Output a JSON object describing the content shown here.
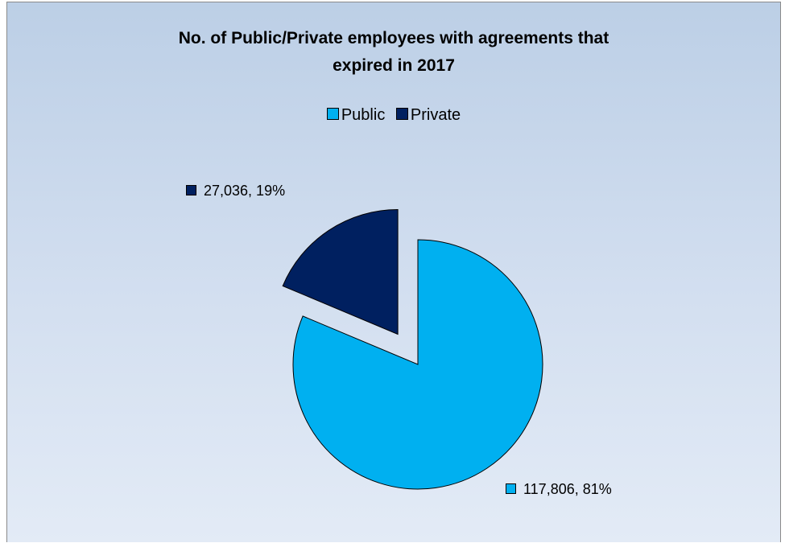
{
  "chart_data": {
    "type": "pie",
    "title": "No. of Public/Private employees with agreements that expired in 2017",
    "title_lines": [
      "No. of Public/Private employees with agreements that",
      "expired in 2017"
    ],
    "legend_position": "top",
    "exploded": true,
    "slices": [
      {
        "label": "Public",
        "value": 117806,
        "percent": 81,
        "value_label": "117,806",
        "percent_label": "81%",
        "color": "#00b0f0"
      },
      {
        "label": "Private",
        "value": 27036,
        "percent": 19,
        "value_label": "27,036",
        "percent_label": "19%",
        "color": "#002060"
      }
    ],
    "data_label_texts": [
      "117,806, 81%",
      "27,036, 19%"
    ]
  }
}
